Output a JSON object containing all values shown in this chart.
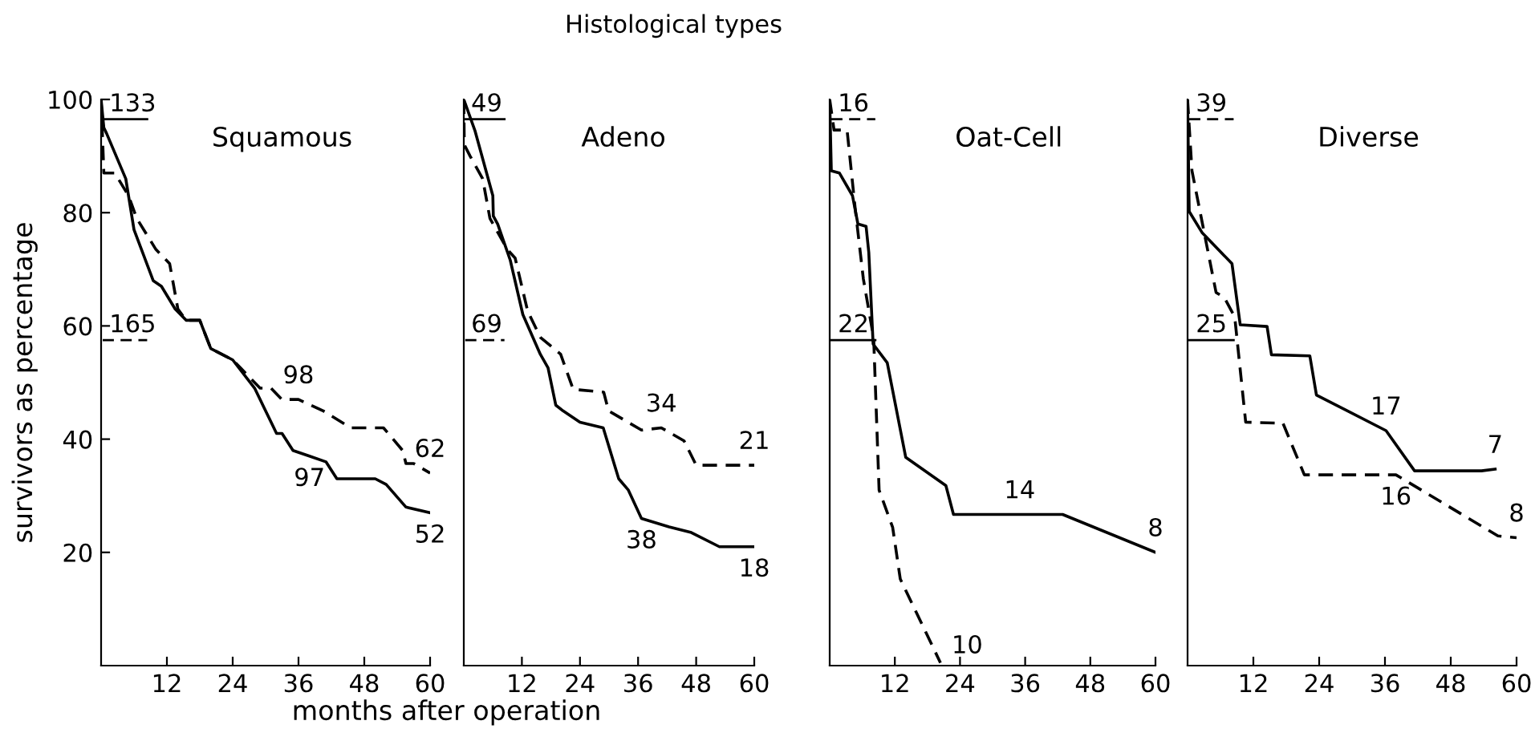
{
  "chart_data": [
    {
      "type": "line",
      "title": "Squamous",
      "xlabel": "months after operation",
      "ylabel": "survivors as percentage",
      "xlim": [
        0,
        60
      ],
      "xticks": [
        12,
        24,
        36,
        48,
        60
      ],
      "ylim": [
        0,
        100
      ],
      "yticks": [
        20,
        40,
        60,
        80,
        100
      ],
      "grid": false,
      "legend": false,
      "series": [
        {
          "name": "133",
          "color": "#000000",
          "line_style": "solid",
          "x": [
            0,
            0.5,
            1,
            4.5,
            6,
            9.5,
            11,
            13.5,
            15.5,
            18,
            20,
            24,
            28,
            32,
            33,
            35,
            38,
            41,
            43,
            50,
            52,
            55.6,
            60
          ],
          "values": [
            100,
            95,
            94,
            86,
            77,
            68,
            67,
            63,
            61,
            61,
            56,
            54,
            49,
            41,
            41,
            38,
            37,
            36,
            33,
            33,
            32,
            28,
            27
          ]
        },
        {
          "name": "165",
          "color": "#000000",
          "line_style": "dashed",
          "x": [
            0,
            0.5,
            2.5,
            5,
            6.5,
            10,
            12.5,
            14,
            15.5,
            18,
            20,
            24,
            25.5,
            29,
            31,
            33,
            36,
            40.5,
            45.5,
            51.5,
            55,
            55.6,
            57,
            60
          ],
          "values": [
            100,
            87,
            87,
            83,
            79,
            73.5,
            71,
            63,
            61,
            61,
            56,
            54,
            52.5,
            49,
            49,
            47,
            47,
            45,
            42,
            42,
            38,
            35.7,
            35.7,
            34
          ]
        }
      ],
      "annotations": [
        "Histological types",
        {
          "text": "98",
          "x": 36,
          "y": 47
        },
        {
          "text": "97",
          "x": 38,
          "y": 37
        },
        {
          "text": "62",
          "x": 60,
          "y": 34
        },
        {
          "text": "52",
          "x": 60,
          "y": 27
        }
      ]
    },
    {
      "type": "line",
      "title": "Adeno",
      "xlim": [
        0,
        60
      ],
      "xticks": [
        12,
        24,
        36,
        48,
        60
      ],
      "ylim": [
        0,
        100
      ],
      "tick_labels": "x",
      "grid": false,
      "legend": false,
      "series": [
        {
          "name": "49",
          "color": "#000000",
          "line_style": "solid",
          "x": [
            0,
            2.3,
            6,
            6.1,
            7,
            9.6,
            12.2,
            15.8,
            17.4,
            19,
            20.5,
            24,
            28.8,
            32,
            34,
            36.7,
            42.4,
            47,
            52.8,
            60
          ],
          "values": [
            100,
            94.5,
            83,
            79.4,
            78,
            71.6,
            62,
            55,
            52.6,
            46,
            45,
            43,
            42,
            33,
            31,
            26,
            24.5,
            23.5,
            21,
            21
          ]
        },
        {
          "name": "69",
          "color": "#000000",
          "line_style": "dashed",
          "x": [
            0,
            0.1,
            1.3,
            3.9,
            5.4,
            9,
            10.6,
            13.2,
            15.8,
            20,
            22.6,
            28.9,
            29.9,
            36.7,
            40.8,
            45.5,
            48,
            60
          ],
          "values": [
            100,
            92,
            90,
            86,
            79,
            73.5,
            72,
            62.6,
            58,
            55,
            48.8,
            48.3,
            45,
            41.6,
            42,
            39.7,
            35.4,
            35.4
          ]
        }
      ],
      "annotations": [
        {
          "text": "34",
          "x": 40.8,
          "y": 42
        },
        {
          "text": "38",
          "x": 36.7,
          "y": 26
        },
        {
          "text": "21",
          "x": 60,
          "y": 35.4
        },
        {
          "text": "18",
          "x": 60,
          "y": 21
        }
      ]
    },
    {
      "type": "line",
      "title": "Oat-Cell",
      "xlim": [
        0,
        60
      ],
      "xticks": [
        12,
        24,
        36,
        48,
        60
      ],
      "ylim": [
        0,
        100
      ],
      "tick_labels": "x",
      "grid": false,
      "legend": false,
      "series": [
        {
          "name": "16",
          "color": "#000000",
          "line_style": "dashed",
          "x": [
            0,
            0.8,
            3.2,
            4.7,
            6.2,
            8.1,
            9.1,
            11.6,
            13,
            20.4
          ],
          "values": [
            100,
            94.6,
            94.6,
            80.7,
            68.3,
            57.8,
            31,
            24.4,
            15.3,
            0.5
          ]
        },
        {
          "name": "22",
          "color": "#000000",
          "line_style": "solid",
          "x": [
            0,
            0.3,
            1.8,
            4.2,
            5.2,
            6.7,
            7.2,
            8,
            10.6,
            14,
            21.4,
            22.8,
            35,
            42.9,
            60
          ],
          "values": [
            100,
            87.4,
            87,
            83,
            78,
            77.6,
            73,
            56.8,
            53.5,
            36.8,
            31.8,
            26.7,
            26.7,
            26.7,
            20
          ]
        }
      ],
      "annotations": [
        {
          "text": "14",
          "x": 35,
          "y": 26.7
        },
        {
          "text": "10",
          "x": 20.4,
          "y": 0.5
        },
        {
          "text": "8",
          "x": 60,
          "y": 20
        }
      ]
    },
    {
      "type": "line",
      "title": "Diverse",
      "xlim": [
        0,
        60
      ],
      "xticks": [
        12,
        24,
        36,
        48,
        60
      ],
      "ylim": [
        0,
        100
      ],
      "tick_labels": "x",
      "grid": false,
      "legend": false,
      "series": [
        {
          "name": "39",
          "color": "#000000",
          "line_style": "dashed",
          "x": [
            0,
            0.8,
            5.2,
            6.7,
            8.6,
            10.6,
            17.4,
            21.3,
            38,
            56.6,
            60
          ],
          "values": [
            100,
            87.4,
            65.9,
            65,
            61.6,
            43,
            42.8,
            33.7,
            33.7,
            22.9,
            22.6
          ]
        },
        {
          "name": "25",
          "color": "#000000",
          "line_style": "solid",
          "x": [
            0,
            0.3,
            2.7,
            8.1,
            9.6,
            14.5,
            15.3,
            22.3,
            23.5,
            36.2,
            41.4,
            53.6,
            56.1
          ],
          "values": [
            100,
            80.2,
            76.4,
            71,
            60.2,
            59.9,
            54.9,
            54.7,
            47.8,
            41.5,
            34.4,
            34.4,
            34.7
          ]
        }
      ],
      "annotations": [
        {
          "text": "17",
          "x": 36.2,
          "y": 41.5
        },
        {
          "text": "7",
          "x": 56.1,
          "y": 34.7
        },
        {
          "text": "16",
          "x": 38,
          "y": 33.7
        },
        {
          "text": "8",
          "x": 60,
          "y": 22.6
        }
      ]
    }
  ]
}
